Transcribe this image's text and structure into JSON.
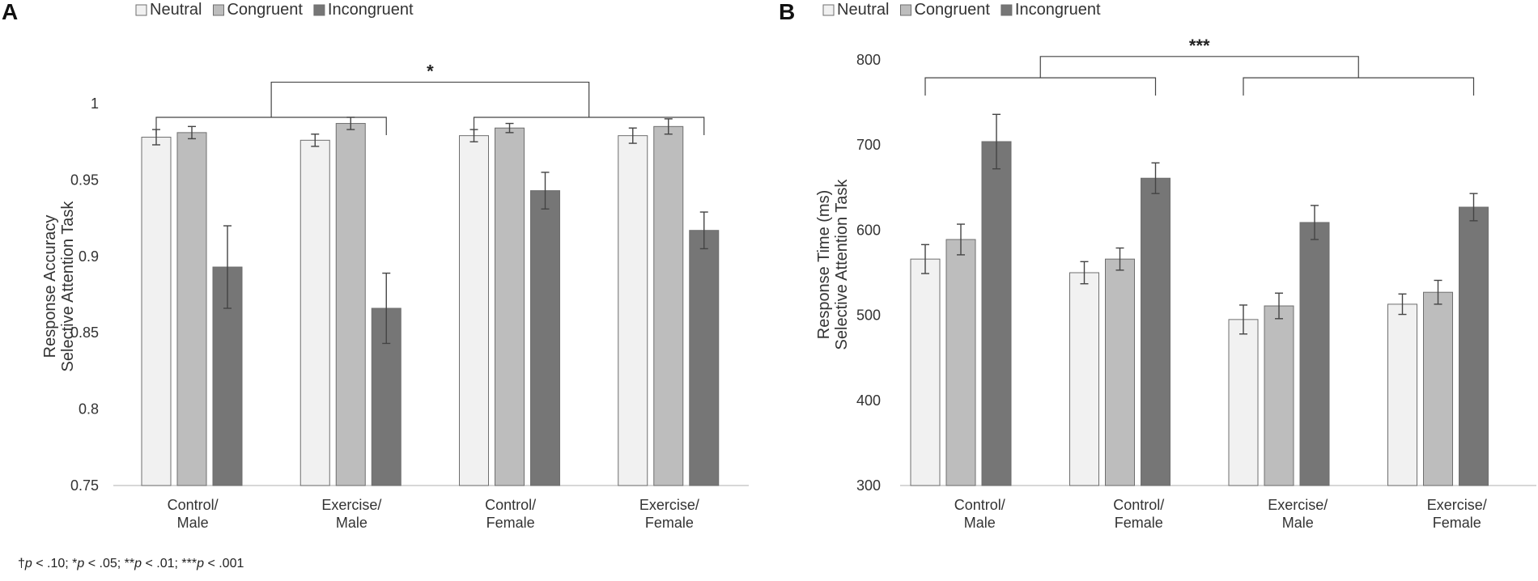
{
  "colors": {
    "neutral": "#f1f1f1",
    "congruent": "#bdbdbd",
    "incongruent": "#767676",
    "bar_stroke": "#6e6e6e",
    "axis": "#bfbfbf",
    "text": "#333333"
  },
  "footnote": {
    "dagger": "†",
    "p1": "p",
    "t1": " < .10; *",
    "p2": "p",
    "t2": " < .05; **",
    "p3": "p",
    "t3": " < .01; ***",
    "p4": "p",
    "t4": " < .001"
  },
  "chart_data": [
    {
      "panel_label": "A",
      "type": "bar",
      "ylabel": [
        "Response Accuracy",
        "Selective Attention Task"
      ],
      "ylim": [
        0.75,
        1.0
      ],
      "yticks": [
        0.75,
        0.8,
        0.85,
        0.9,
        0.95,
        1
      ],
      "ytick_labels": [
        "0.75",
        "0.8",
        "0.85",
        "0.9",
        "0.95",
        "1"
      ],
      "categories": [
        [
          "Control/",
          "Male"
        ],
        [
          "Exercise/",
          "Male"
        ],
        [
          "Control/",
          "Female"
        ],
        [
          "Exercise/",
          "Female"
        ]
      ],
      "legend": [
        "Neutral",
        "Congruent",
        "Incongruent"
      ],
      "series": [
        {
          "name": "Neutral",
          "values": [
            0.978,
            0.976,
            0.979,
            0.979
          ],
          "errors": [
            0.005,
            0.004,
            0.004,
            0.005
          ]
        },
        {
          "name": "Congruent",
          "values": [
            0.981,
            0.987,
            0.984,
            0.985
          ],
          "errors": [
            0.004,
            0.004,
            0.003,
            0.005
          ]
        },
        {
          "name": "Incongruent",
          "values": [
            0.893,
            0.866,
            0.943,
            0.917
          ],
          "errors": [
            0.027,
            0.023,
            0.012,
            0.012
          ]
        }
      ],
      "annotations": [
        {
          "type": "bracket",
          "from_category": 0,
          "to_category": 1,
          "level": 0.991
        },
        {
          "type": "bracket",
          "from_category": 2,
          "to_category": 3,
          "level": 0.991
        },
        {
          "type": "bracket",
          "from_bracket": 0,
          "to_bracket": 1,
          "level": 1.014,
          "label": "*"
        }
      ]
    },
    {
      "panel_label": "B",
      "type": "bar",
      "ylabel": [
        "Response Time (ms)",
        "Selective Attention Task"
      ],
      "ylim": [
        300,
        800
      ],
      "yticks": [
        300,
        400,
        500,
        600,
        700,
        800
      ],
      "ytick_labels": [
        "300",
        "400",
        "500",
        "600",
        "700",
        "800"
      ],
      "categories": [
        [
          "Control/",
          "Male"
        ],
        [
          "Control/",
          "Female"
        ],
        [
          "Exercise/",
          "Male"
        ],
        [
          "Exercise/",
          "Female"
        ]
      ],
      "legend": [
        "Neutral",
        "Congruent",
        "Incongruent"
      ],
      "series": [
        {
          "name": "Neutral",
          "values": [
            566,
            550,
            495,
            513
          ],
          "errors": [
            17,
            13,
            17,
            12
          ]
        },
        {
          "name": "Congruent",
          "values": [
            589,
            566,
            511,
            527
          ],
          "errors": [
            18,
            13,
            15,
            14
          ]
        },
        {
          "name": "Incongruent",
          "values": [
            704,
            661,
            609,
            627
          ],
          "errors": [
            32,
            18,
            20,
            16
          ]
        }
      ],
      "annotations": [
        {
          "type": "bracket",
          "from_category": 0,
          "to_category": 1,
          "level": 779
        },
        {
          "type": "bracket",
          "from_category": 2,
          "to_category": 3,
          "level": 779
        },
        {
          "type": "bracket",
          "from_bracket": 0,
          "to_bracket": 1,
          "level": 804,
          "label": "***"
        }
      ]
    }
  ]
}
